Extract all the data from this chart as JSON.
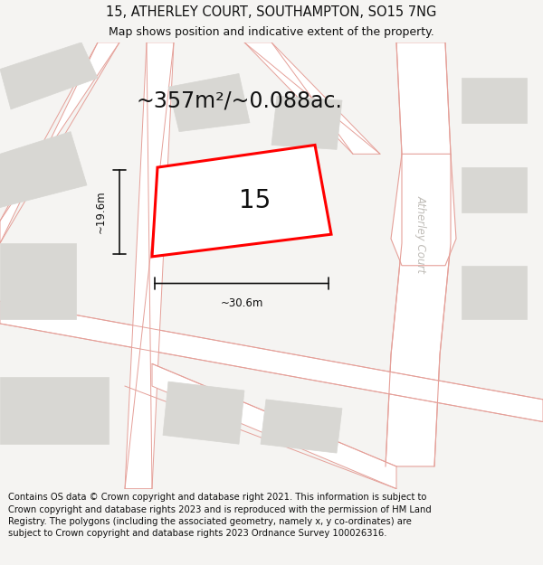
{
  "title": "15, ATHERLEY COURT, SOUTHAMPTON, SO15 7NG",
  "subtitle": "Map shows position and indicative extent of the property.",
  "area_text": "~357m²/~0.088ac.",
  "label_15": "15",
  "dim_width": "~30.6m",
  "dim_height": "~19.6m",
  "street_label": "Atherley Court",
  "footer_text": "Contains OS data © Crown copyright and database right 2021. This information is subject to Crown copyright and database rights 2023 and is reproduced with the permission of HM Land Registry. The polygons (including the associated geometry, namely x, y co-ordinates) are subject to Crown copyright and database rights 2023 Ordnance Survey 100026316.",
  "bg_color": "#f5f4f2",
  "map_bg": "#eeede9",
  "building_fill": "#d8d7d3",
  "building_edge": "#d8d7d3",
  "road_fill": "#ffffff",
  "road_stroke": "#e5a099",
  "highlight_fill": "#ffffff",
  "highlight_stroke": "#ff0000",
  "dim_color": "#111111",
  "title_fontsize": 10.5,
  "subtitle_fontsize": 9,
  "area_fontsize": 17,
  "label_fontsize": 20,
  "footer_fontsize": 7.2,
  "street_fontsize": 8.5
}
